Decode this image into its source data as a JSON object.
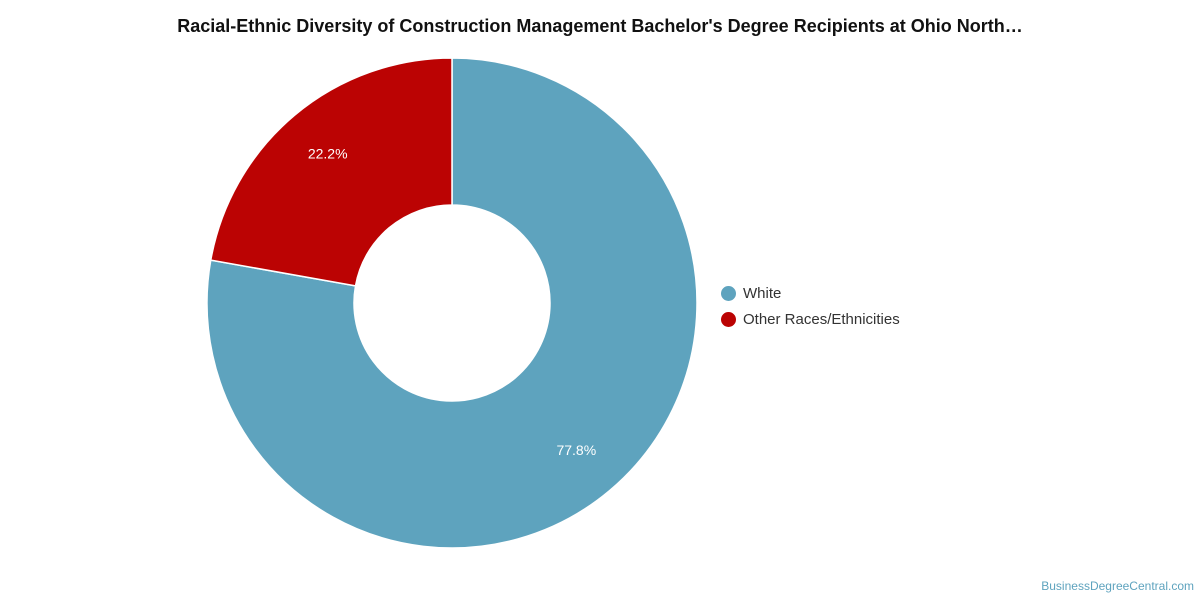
{
  "chart_data": {
    "type": "pie",
    "title": "Racial-Ethnic Diversity of Construction Management Bachelor's Degree Recipients at Ohio North…",
    "donut": true,
    "legend_position": "right",
    "slices": [
      {
        "label": "White",
        "value": 77.8,
        "display": "77.8%",
        "color": "#5ea3be"
      },
      {
        "label": "Other Races/Ethnicities",
        "value": 22.2,
        "display": "22.2%",
        "color": "#bb0303"
      }
    ]
  },
  "footer": {
    "credit": "BusinessDegreeCentral.com"
  }
}
